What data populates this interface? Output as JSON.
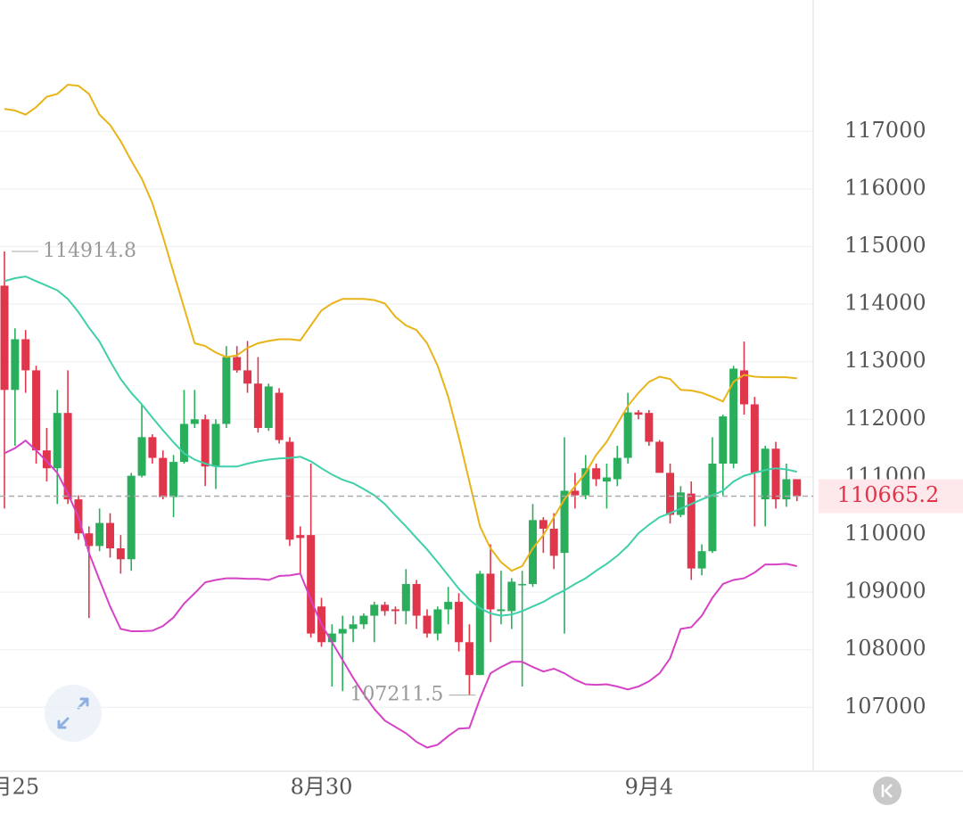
{
  "chart_data": {
    "type": "candlestick",
    "categories": [
      null,
      "月25",
      null,
      null,
      null,
      null,
      null,
      null,
      null,
      null,
      null,
      null,
      null,
      null,
      null,
      null,
      null,
      null,
      null,
      null,
      null,
      null,
      null,
      null,
      null,
      null,
      null,
      null,
      null,
      null,
      "8月30",
      null,
      null,
      null,
      null,
      null,
      null,
      null,
      null,
      null,
      null,
      null,
      null,
      null,
      null,
      null,
      null,
      null,
      null,
      null,
      null,
      null,
      null,
      null,
      null,
      null,
      null,
      null,
      null,
      null,
      null,
      "9月4",
      null,
      null,
      null,
      null,
      null,
      null,
      null,
      null,
      null,
      null,
      null,
      null,
      null,
      null
    ],
    "open": [
      114320,
      112510,
      113390,
      112850,
      111460,
      111150,
      112110,
      110610,
      110020,
      109800,
      110200,
      109760,
      109570,
      111020,
      111690,
      111330,
      110650,
      111260,
      111920,
      112000,
      111180,
      111920,
      113080,
      112850,
      112620,
      111850,
      112460,
      111610,
      109990,
      109990,
      108750,
      108130,
      108280,
      108360,
      108440,
      108590,
      108780,
      108700,
      108670,
      109140,
      108590,
      108280,
      108700,
      108830,
      108130,
      107560,
      109320,
      108670,
      108670,
      109130,
      109140,
      110250,
      110100,
      109680,
      110760,
      110680,
      111150,
      110920,
      110960,
      111330,
      112120,
      112110,
      111610,
      111070,
      110340,
      110710,
      109410,
      109710,
      111230,
      111230,
      112850,
      112260,
      110610,
      111490,
      110610,
      110960
    ],
    "high": [
      114914.8,
      113580,
      113550,
      112930,
      111850,
      112510,
      112850,
      110680,
      110140,
      110450,
      110370,
      109990,
      111070,
      112260,
      111740,
      111460,
      111380,
      112510,
      112510,
      112080,
      112000,
      113270,
      113270,
      113360,
      113080,
      112620,
      112540,
      111690,
      110140,
      111230,
      108900,
      108440,
      108590,
      108590,
      108630,
      108830,
      108830,
      108750,
      109400,
      109210,
      108700,
      108750,
      109090,
      108980,
      108440,
      109370,
      109830,
      109370,
      109240,
      109370,
      110530,
      110300,
      110370,
      111690,
      111070,
      111380,
      111230,
      111230,
      111540,
      112460,
      112160,
      112160,
      111640,
      111230,
      110840,
      110920,
      109830,
      111690,
      112080,
      112930,
      113350,
      112390,
      111540,
      111610,
      111230,
      110960
    ],
    "low": [
      110450,
      111540,
      112460,
      111230,
      110920,
      110530,
      110530,
      109910,
      108550,
      109710,
      109600,
      109320,
      109370,
      110990,
      111230,
      110610,
      110300,
      111230,
      111850,
      110840,
      110790,
      111850,
      112810,
      112460,
      111770,
      111800,
      111580,
      109800,
      109320,
      108210,
      108050,
      107360,
      107280,
      108130,
      108360,
      108130,
      108590,
      108440,
      108440,
      108360,
      108210,
      108160,
      108440,
      107970,
      107211.5,
      107560,
      108130,
      108440,
      108360,
      107360,
      109090,
      109680,
      109400,
      108280,
      110450,
      110610,
      110840,
      110450,
      110840,
      111230,
      112000,
      111540,
      111180,
      110190,
      110300,
      109210,
      109290,
      109680,
      110680,
      111150,
      112080,
      110140,
      110140,
      110450,
      110480,
      110580
    ],
    "close": [
      112510,
      113390,
      112850,
      111460,
      111150,
      112110,
      110610,
      110020,
      109800,
      110200,
      109760,
      109570,
      111020,
      111690,
      111330,
      110650,
      111260,
      111920,
      112000,
      111180,
      111920,
      113080,
      112850,
      112620,
      111850,
      112570,
      111640,
      109910,
      109940,
      108280,
      108130,
      108280,
      108360,
      108440,
      108590,
      108780,
      108670,
      108670,
      109140,
      108590,
      108280,
      108700,
      108830,
      108130,
      107560,
      109320,
      108700,
      108700,
      109180,
      109140,
      110250,
      110100,
      109630,
      110760,
      110680,
      111150,
      110960,
      110990,
      111330,
      112120,
      112080,
      111610,
      111070,
      110340,
      110730,
      109410,
      109710,
      111230,
      112050,
      112880,
      112260,
      111070,
      111490,
      110610,
      110960,
      110665.2
    ],
    "up_color": "#2bae5c",
    "down_color": "#e0364c",
    "bands": [
      {
        "color": "#e8b418",
        "values": [
          117390,
          117360,
          117290,
          117420,
          117600,
          117650,
          117810,
          117790,
          117650,
          117290,
          117110,
          116830,
          116490,
          116180,
          115750,
          115170,
          114550,
          113940,
          113320,
          113270,
          113160,
          113080,
          113110,
          113240,
          113320,
          113360,
          113390,
          113390,
          113370,
          113630,
          113890,
          114010,
          114090,
          114090,
          114090,
          114070,
          114010,
          113780,
          113630,
          113550,
          113320,
          112930,
          112390,
          111690,
          110920,
          110140,
          109760,
          109520,
          109370,
          109450,
          109760,
          109990,
          110300,
          110610,
          110840,
          111070,
          111380,
          111610,
          111920,
          112230,
          112460,
          112650,
          112740,
          112700,
          112510,
          112500,
          112460,
          112390,
          112310,
          112650,
          112770,
          112740,
          112730,
          112730,
          112730,
          112710
        ]
      },
      {
        "color": "#3fcfa9",
        "values": [
          114400,
          114450,
          114480,
          114400,
          114320,
          114240,
          114090,
          113860,
          113590,
          113350,
          113010,
          112700,
          112460,
          112260,
          112030,
          111810,
          111600,
          111410,
          111300,
          111230,
          111180,
          111180,
          111180,
          111230,
          111270,
          111300,
          111320,
          111330,
          111350,
          111270,
          111150,
          111040,
          110950,
          110890,
          110790,
          110680,
          110530,
          110330,
          110140,
          109940,
          109740,
          109520,
          109290,
          109060,
          108870,
          108720,
          108630,
          108590,
          108610,
          108670,
          108750,
          108830,
          108940,
          109030,
          109140,
          109240,
          109370,
          109490,
          109630,
          109800,
          110020,
          110170,
          110300,
          110370,
          110450,
          110530,
          110610,
          110680,
          110760,
          110920,
          111020,
          111070,
          111120,
          111150,
          111130,
          111090
        ]
      },
      {
        "color": "#d542c6",
        "values": [
          111410,
          111500,
          111630,
          111460,
          111270,
          111070,
          110710,
          110300,
          109680,
          109210,
          108750,
          108360,
          108320,
          108320,
          108330,
          108410,
          108560,
          108800,
          108980,
          109170,
          109210,
          109240,
          109240,
          109230,
          109230,
          109210,
          109280,
          109290,
          109320,
          108870,
          108440,
          108130,
          107820,
          107510,
          107230,
          106970,
          106770,
          106660,
          106550,
          106400,
          106300,
          106350,
          106500,
          106630,
          106640,
          107150,
          107590,
          107700,
          107790,
          107790,
          107700,
          107620,
          107670,
          107590,
          107480,
          107400,
          107390,
          107400,
          107360,
          107310,
          107360,
          107450,
          107590,
          107850,
          108360,
          108390,
          108590,
          108900,
          109140,
          109210,
          109240,
          109340,
          109480,
          109480,
          109490,
          109450
        ]
      }
    ],
    "ylim": [
      105890,
      119280
    ],
    "yticks": [
      107000,
      108000,
      109000,
      110000,
      111000,
      112000,
      113000,
      114000,
      115000,
      116000,
      117000
    ],
    "grid": true
  }
}
